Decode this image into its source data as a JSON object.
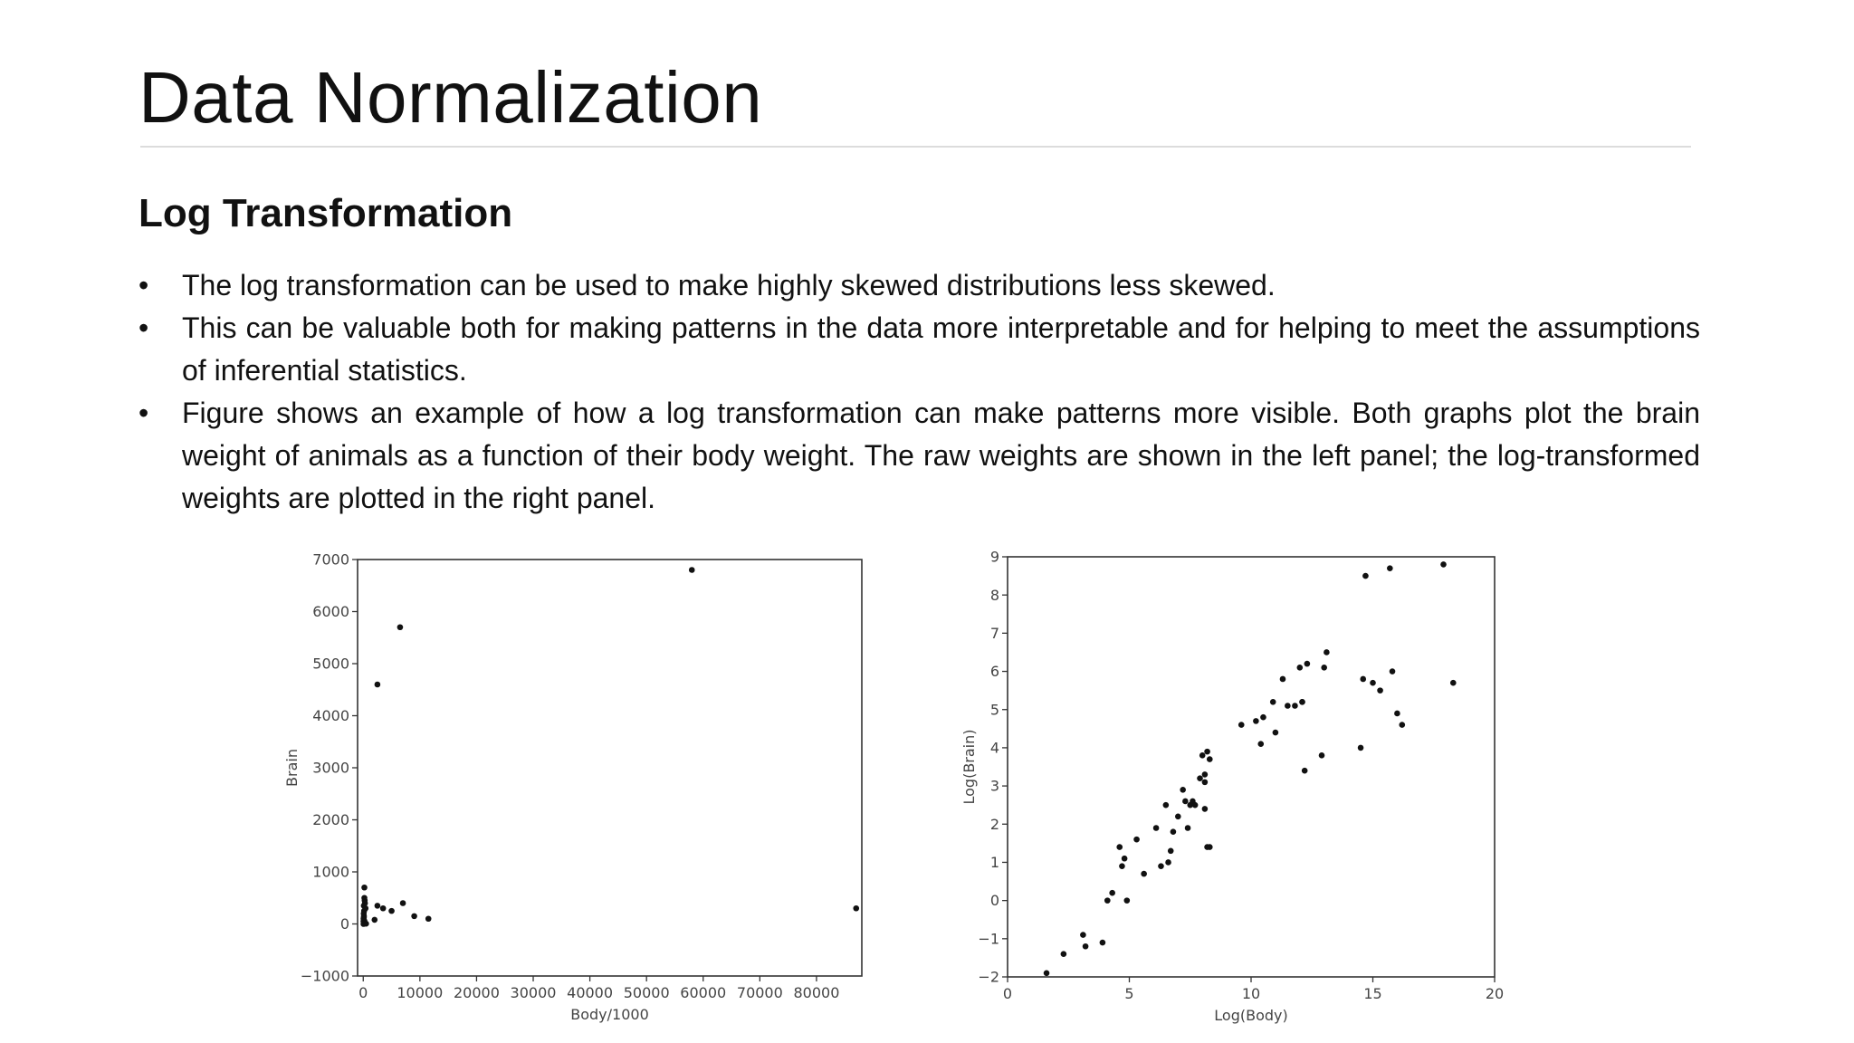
{
  "slide": {
    "title": "Data Normalization",
    "heading": "Log Transformation",
    "bullet_symbol": "•",
    "bullets": [
      "The log transformation can be used to make highly skewed distributions less skewed.",
      "This can be valuable both for making patterns in the data more interpretable and for helping to meet the assumptions of inferential statistics.",
      "Figure shows an example of how a log transformation can make patterns more visible. Both graphs plot the brain weight of animals as a function of their body weight. The raw weights are shown in the left panel; the log-transformed weights are plotted in the right panel."
    ]
  },
  "chart_data": [
    {
      "type": "scatter",
      "title": "",
      "xlabel": "Body/1000",
      "ylabel": "Brain",
      "xlim": [
        -1000,
        88000
      ],
      "ylim": [
        -1000,
        7000
      ],
      "xticks": [
        0,
        10000,
        20000,
        30000,
        40000,
        50000,
        60000,
        70000,
        80000
      ],
      "yticks": [
        -1000,
        0,
        1000,
        2000,
        3000,
        4000,
        5000,
        6000,
        7000
      ],
      "grid": false,
      "series": [
        {
          "x": [
            58000,
            6500,
            2500,
            87000,
            7000,
            200,
            200,
            250,
            300,
            100,
            150,
            400,
            80,
            120,
            60,
            200,
            2500,
            3500,
            5000,
            9000,
            11500,
            2000,
            50,
            100,
            300,
            500,
            50,
            100
          ],
          "y": [
            6800,
            5700,
            4600,
            300,
            400,
            700,
            500,
            450,
            400,
            350,
            250,
            300,
            200,
            150,
            100,
            60,
            350,
            300,
            250,
            150,
            100,
            80,
            50,
            20,
            10,
            5,
            0,
            120
          ]
        }
      ]
    },
    {
      "type": "scatter",
      "title": "",
      "xlabel": "Log(Body)",
      "ylabel": "Log(Brain)",
      "xlim": [
        0,
        20
      ],
      "ylim": [
        -2,
        9
      ],
      "xticks": [
        0,
        5,
        10,
        15,
        20
      ],
      "yticks": [
        -2,
        -1,
        0,
        1,
        2,
        3,
        4,
        5,
        6,
        7,
        8,
        9
      ],
      "grid": false,
      "series": [
        {
          "x": [
            1.6,
            2.3,
            3.1,
            3.2,
            3.9,
            4.1,
            4.3,
            4.6,
            4.7,
            4.8,
            4.9,
            5.3,
            5.6,
            6.1,
            6.3,
            6.5,
            6.6,
            6.7,
            6.8,
            7.0,
            7.2,
            7.3,
            7.4,
            7.5,
            7.6,
            7.7,
            7.9,
            8.0,
            8.1,
            8.1,
            8.1,
            8.2,
            8.3,
            8.3,
            8.2,
            9.6,
            10.2,
            10.4,
            10.5,
            10.9,
            11.0,
            11.3,
            11.5,
            11.8,
            12.0,
            12.1,
            12.3,
            12.9,
            13.0,
            13.1,
            14.5,
            14.6,
            15.0,
            15.3,
            15.8,
            16.0,
            16.2,
            14.7,
            15.7,
            17.9,
            18.3,
            12.2,
            12.1
          ],
          "y": [
            -1.9,
            -1.4,
            -0.9,
            -1.2,
            -1.1,
            0.0,
            0.2,
            1.4,
            0.9,
            1.1,
            0.0,
            1.6,
            0.7,
            1.9,
            0.9,
            2.5,
            1.0,
            1.3,
            1.8,
            2.2,
            2.9,
            2.6,
            1.9,
            2.5,
            2.6,
            2.5,
            3.2,
            3.8,
            3.3,
            3.1,
            2.4,
            3.9,
            3.7,
            1.4,
            1.4,
            4.6,
            4.7,
            4.1,
            4.8,
            5.2,
            4.4,
            5.8,
            5.1,
            5.1,
            6.1,
            5.2,
            6.2,
            3.8,
            6.1,
            6.5,
            4.0,
            5.8,
            5.7,
            5.5,
            6.0,
            4.9,
            4.6,
            8.5,
            8.7,
            8.8,
            5.7,
            3.4,
            5.2
          ]
        }
      ]
    }
  ]
}
